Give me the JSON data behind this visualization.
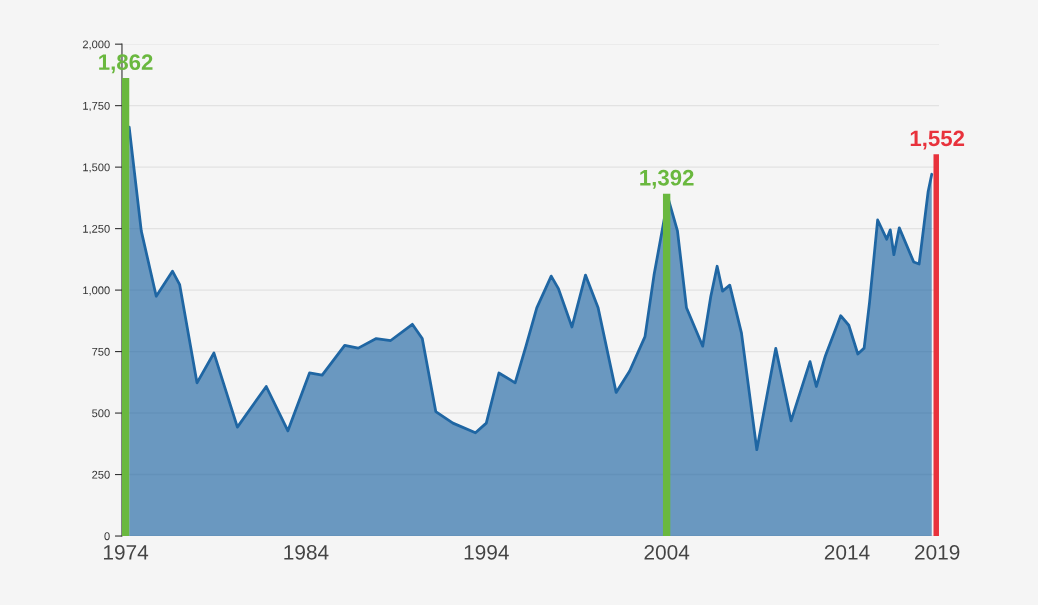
{
  "chart_data": {
    "type": "area",
    "xlim": [
      1973.8,
      2019.1
    ],
    "xticks": [
      1974,
      1984,
      1994,
      2004,
      2014,
      2019
    ],
    "ylim": [
      0,
      2000
    ],
    "yticks": [
      {
        "value": 0,
        "label": "0"
      },
      {
        "value": 250,
        "label": "250"
      },
      {
        "value": 500,
        "label": "500"
      },
      {
        "value": 750,
        "label": "750"
      },
      {
        "value": 1000,
        "label": "1,000"
      },
      {
        "value": 1250,
        "label": "1,250"
      },
      {
        "value": 1500,
        "label": "1,500"
      },
      {
        "value": 1750,
        "label": "1,750"
      },
      {
        "value": 2000,
        "label": "2,000"
      }
    ],
    "grid": "y",
    "series": [
      {
        "color": "#1f66a3",
        "x": [
          1974.2,
          1974.87,
          1975.7,
          1976.6,
          1977.0,
          1977.96,
          1978.9,
          1980.2,
          1981.8,
          1983.0,
          1984.2,
          1984.9,
          1986.15,
          1986.9,
          1987.9,
          1988.7,
          1989.9,
          1990.45,
          1991.2,
          1992.15,
          1993.4,
          1994.0,
          1994.7,
          1995.6,
          1996.2,
          1996.8,
          1997.6,
          1998.0,
          1998.75,
          1999.5,
          2000.2,
          2001.2,
          2001.95,
          2002.8,
          2003.3,
          2004.08,
          2004.6,
          2005.1,
          2006.0,
          2006.45,
          2006.8,
          2007.1,
          2007.5,
          2008.15,
          2009.0,
          2010.05,
          2010.9,
          2011.95,
          2012.3,
          2012.8,
          2013.65,
          2014.1,
          2014.6,
          2014.95,
          2015.25,
          2015.7,
          2016.2,
          2016.4,
          2016.6,
          2016.9,
          2017.7,
          2018.0,
          2018.5,
          2018.7
        ],
        "values": [
          1663,
          1241,
          975,
          1077,
          1022,
          623,
          744,
          443,
          608,
          428,
          663,
          654,
          775,
          764,
          803,
          795,
          861,
          803,
          506,
          459,
          420,
          459,
          663,
          623,
          772,
          928,
          1057,
          1006,
          850,
          1061,
          928,
          584,
          671,
          811,
          1061,
          1374,
          1241,
          928,
          772,
          975,
          1097,
          996,
          1020,
          825,
          351,
          763,
          468,
          709,
          608,
          732,
          896,
          857,
          740,
          764,
          950,
          1285,
          1207,
          1245,
          1144,
          1253,
          1114,
          1106,
          1401,
          1471
        ]
      },
      {
        "type": "bar",
        "x": [
          1974,
          2004,
          2019
        ],
        "values": [
          1862,
          1392,
          1552
        ],
        "colors": [
          "#6ab83f",
          "#6ab83f",
          "#e8323c"
        ],
        "value_labels": [
          "1,862",
          "1,392",
          "1,552"
        ]
      }
    ]
  }
}
